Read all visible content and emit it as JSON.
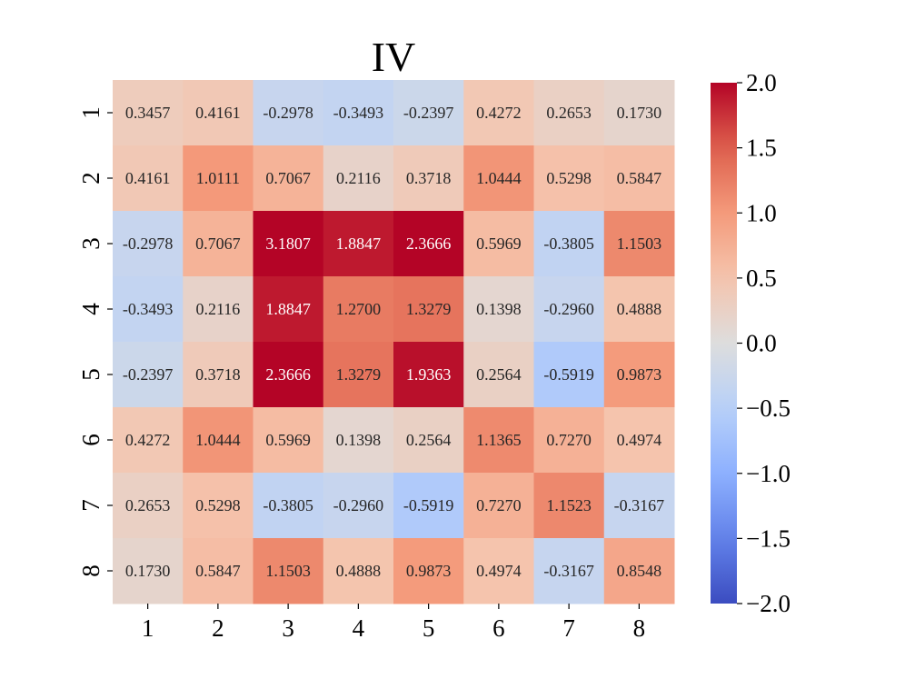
{
  "chart_data": {
    "type": "heatmap",
    "title": "IV",
    "xlabel": "",
    "ylabel": "",
    "x_tick_labels": [
      "1",
      "2",
      "3",
      "4",
      "5",
      "6",
      "7",
      "8"
    ],
    "y_tick_labels": [
      "1",
      "2",
      "3",
      "4",
      "5",
      "6",
      "7",
      "8"
    ],
    "colormap": "coolwarm",
    "vmin": -2.0,
    "vmax": 2.0,
    "colorbar_tick_labels": [
      "2.0",
      "1.5",
      "1.0",
      "0.5",
      "0.0",
      "−0.5",
      "−1.0",
      "−1.5",
      "−2.0"
    ],
    "colorbar_tick_values": [
      2.0,
      1.5,
      1.0,
      0.5,
      0.0,
      -0.5,
      -1.0,
      -1.5,
      -2.0
    ],
    "values": [
      [
        0.3457,
        0.4161,
        -0.2978,
        -0.3493,
        -0.2397,
        0.4272,
        0.2653,
        0.173
      ],
      [
        0.4161,
        1.0111,
        0.7067,
        0.2116,
        0.3718,
        1.0444,
        0.5298,
        0.5847
      ],
      [
        -0.2978,
        0.7067,
        3.1807,
        1.8847,
        2.3666,
        0.5969,
        -0.3805,
        1.1503
      ],
      [
        -0.3493,
        0.2116,
        1.8847,
        1.27,
        1.3279,
        0.1398,
        -0.296,
        0.4888
      ],
      [
        -0.2397,
        0.3718,
        2.3666,
        1.3279,
        1.9363,
        0.2564,
        -0.5919,
        0.9873
      ],
      [
        0.4272,
        1.0444,
        0.5969,
        0.1398,
        0.2564,
        1.1365,
        0.727,
        0.4974
      ],
      [
        0.2653,
        0.5298,
        -0.3805,
        -0.296,
        -0.5919,
        0.727,
        1.1523,
        -0.3167
      ],
      [
        0.173,
        0.5847,
        1.1503,
        0.4888,
        0.9873,
        0.4974,
        -0.3167,
        0.8548
      ]
    ],
    "cell_labels": [
      [
        "0.3457",
        "0.4161",
        "-0.2978",
        "-0.3493",
        "-0.2397",
        "0.4272",
        "0.2653",
        "0.1730"
      ],
      [
        "0.4161",
        "1.0111",
        "0.7067",
        "0.2116",
        "0.3718",
        "1.0444",
        "0.5298",
        "0.5847"
      ],
      [
        "-0.2978",
        "0.7067",
        "3.1807",
        "1.8847",
        "2.3666",
        "0.5969",
        "-0.3805",
        "1.1503"
      ],
      [
        "-0.3493",
        "0.2116",
        "1.8847",
        "1.2700",
        "1.3279",
        "0.1398",
        "-0.2960",
        "0.4888"
      ],
      [
        "-0.2397",
        "0.3718",
        "2.3666",
        "1.3279",
        "1.9363",
        "0.2564",
        "-0.5919",
        "0.9873"
      ],
      [
        "0.4272",
        "1.0444",
        "0.5969",
        "0.1398",
        "0.2564",
        "1.1365",
        "0.7270",
        "0.4974"
      ],
      [
        "0.2653",
        "0.5298",
        "-0.3805",
        "-0.2960",
        "-0.5919",
        "0.7270",
        "1.1523",
        "-0.3167"
      ],
      [
        "0.1730",
        "0.5847",
        "1.1503",
        "0.4888",
        "0.9873",
        "0.4974",
        "-0.3167",
        "0.8548"
      ]
    ]
  }
}
